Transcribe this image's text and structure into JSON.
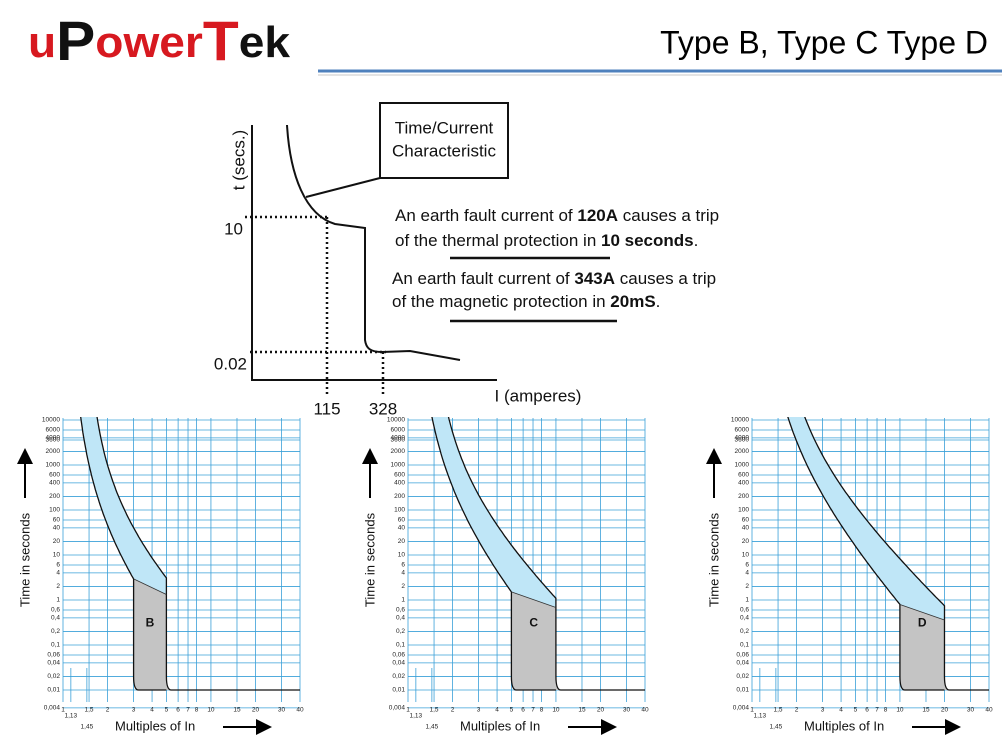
{
  "header": {
    "logo": [
      "u",
      "P",
      "ower",
      "T",
      "ek"
    ],
    "title": "Type B, Type C  Type D"
  },
  "diagram": {
    "y_label": "t (secs.)",
    "x_label": "I (amperes)",
    "y_ticks": [
      "10",
      "0.02"
    ],
    "x_ticks": [
      "115",
      "328"
    ],
    "box": [
      "Time/Current",
      "Characteristic"
    ],
    "note1": {
      "line1": [
        "An earth fault current of ",
        "120A",
        " causes a trip"
      ],
      "line2": [
        "of the thermal protection in ",
        "10 seconds",
        "."
      ]
    },
    "note2": {
      "line1": [
        "An earth fault current of ",
        "343A",
        " causes a trip"
      ],
      "line2": [
        "of the magnetic protection in ",
        "20mS",
        "."
      ]
    }
  },
  "panels": {
    "y_label": "Time in seconds",
    "x_label": "Multiples of In",
    "yticks": [
      10000,
      6000,
      4000,
      3600,
      2000,
      1000,
      600,
      400,
      200,
      100,
      60,
      40,
      20,
      10,
      6,
      4,
      2,
      1,
      {
        "value": 0.6,
        "label": "0,6"
      },
      {
        "value": 0.4,
        "label": "0,4"
      },
      {
        "value": 0.2,
        "label": "0,2"
      },
      {
        "value": 0.1,
        "label": "0,1"
      },
      {
        "value": 0.06,
        "label": "0,06"
      },
      {
        "value": 0.04,
        "label": "0,04"
      },
      {
        "value": 0.02,
        "label": "0,02"
      },
      {
        "value": 0.01,
        "label": "0,01"
      },
      {
        "value": 0.004,
        "label": "0,004"
      }
    ],
    "xticks": [
      1,
      {
        "value": 1.5,
        "label": "1,5"
      },
      2,
      3,
      4,
      5,
      6,
      7,
      8,
      10,
      15,
      20,
      30,
      40
    ],
    "xticks_low": [
      {
        "value": 1.13,
        "label": "1,13"
      },
      {
        "value": 1.45,
        "label": "1,45"
      }
    ],
    "charts": [
      {
        "letter": "B"
      },
      {
        "letter": "C"
      },
      {
        "letter": "D"
      }
    ]
  }
}
